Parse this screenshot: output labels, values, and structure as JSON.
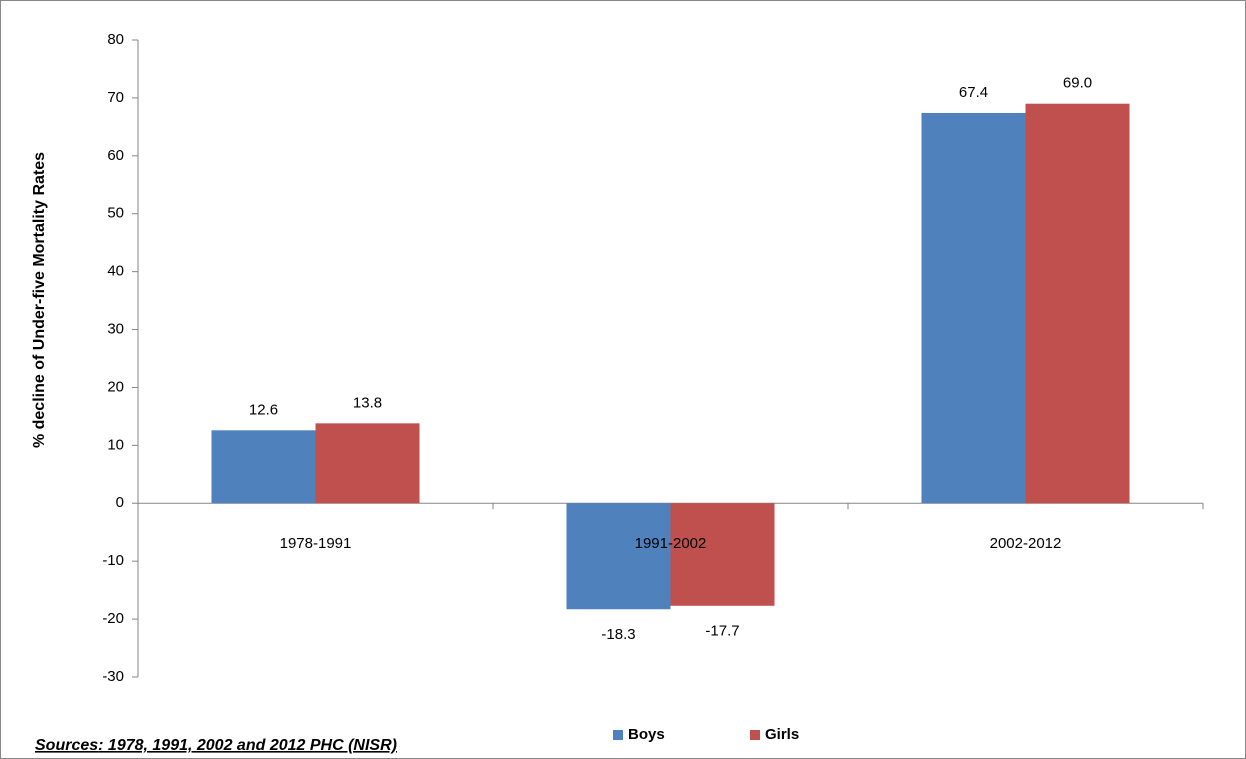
{
  "chart_data": {
    "type": "bar",
    "y_label": "% decline of Under-five Mortality Rates",
    "categories": [
      "1978-1991",
      "1991-2002",
      "2002-2012"
    ],
    "series": [
      {
        "name": "Boys",
        "color": "#4f81bd",
        "values": [
          12.6,
          -18.3,
          67.4
        ]
      },
      {
        "name": "Girls",
        "color": "#c0504d",
        "values": [
          13.8,
          -17.7,
          69
        ],
        "value_labels": [
          "13.8",
          "-17.7",
          "69.0"
        ]
      }
    ],
    "ylim": [
      -30,
      80
    ],
    "yticks": [
      -30,
      -20,
      -10,
      0,
      10,
      20,
      30,
      40,
      50,
      60,
      70,
      80
    ],
    "grid": false,
    "legend": "bottom",
    "source_label": "Sources",
    "source": ": 1978, 1991, 2002 and 2012 PHC (NISR)"
  }
}
